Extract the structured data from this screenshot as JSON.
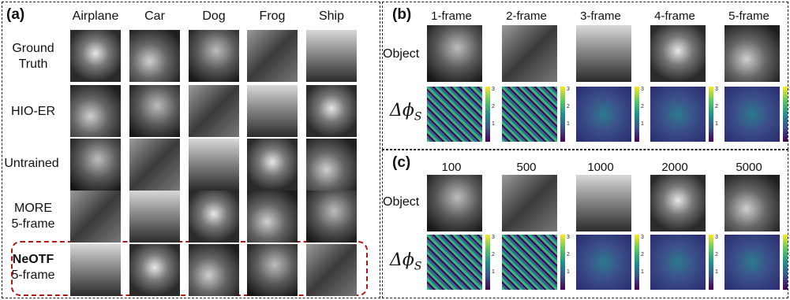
{
  "panel_a": {
    "label": "(a)",
    "columns": [
      "Airplane",
      "Car",
      "Dog",
      "Frog",
      "Ship"
    ],
    "rows": [
      {
        "line1": "Ground",
        "line2": "Truth",
        "bold": false
      },
      {
        "line1": "HIO-ER",
        "line2": "",
        "bold": false
      },
      {
        "line1": "Untrained",
        "line2": "",
        "bold": false
      },
      {
        "line1": "MORE",
        "line2": "5-frame",
        "bold": false
      },
      {
        "line1": "NeOTF",
        "line2": "5-frame",
        "bold": true
      }
    ]
  },
  "panel_b": {
    "label": "(b)",
    "columns": [
      "1-frame",
      "2-frame",
      "3-frame",
      "4-frame",
      "5-frame"
    ],
    "row_object": "Object",
    "row_phase_symbol": "Δϕ",
    "row_phase_sub": "S",
    "colorbar_ticks": [
      "3",
      "2",
      "1"
    ]
  },
  "panel_c": {
    "label": "(c)",
    "columns": [
      "100",
      "500",
      "1000",
      "2000",
      "5000"
    ],
    "row_object": "Object",
    "row_phase_symbol": "Δϕ",
    "row_phase_sub": "S",
    "colorbar_ticks": [
      "3",
      "2",
      "1"
    ]
  },
  "colors": {
    "highlight_border": "#b01717",
    "frame_border": "#222222",
    "cmap_low": "#440154",
    "cmap_mid": "#21918c",
    "cmap_high": "#fde725"
  }
}
